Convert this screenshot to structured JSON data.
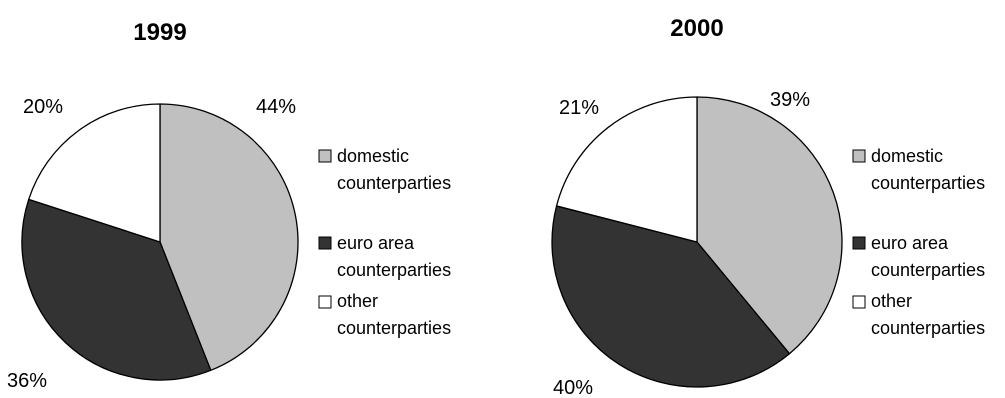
{
  "chart_data": [
    {
      "type": "pie",
      "title": "1999",
      "slices": [
        {
          "label": "domestic counterparties",
          "value": 44,
          "label_text": "44%",
          "color": "#c0c0c0"
        },
        {
          "label": "euro area counterparties",
          "value": 36,
          "label_text": "36%",
          "color": "#333333"
        },
        {
          "label": "other counterparties",
          "value": 20,
          "label_text": "20%",
          "color": "#ffffff"
        }
      ],
      "legend": {
        "placement": "right",
        "entries": [
          {
            "line1": "domestic",
            "line2": "counterparties",
            "color": "#c0c0c0"
          },
          {
            "line1": "euro area",
            "line2": "counterparties",
            "color": "#333333"
          },
          {
            "line1": "other",
            "line2": "counterparties",
            "color": "#ffffff"
          }
        ]
      }
    },
    {
      "type": "pie",
      "title": "2000",
      "slices": [
        {
          "label": "domestic counterparties",
          "value": 39,
          "label_text": "39%",
          "color": "#c0c0c0"
        },
        {
          "label": "euro area counterparties",
          "value": 40,
          "label_text": "40%",
          "color": "#333333"
        },
        {
          "label": "other counterparties",
          "value": 21,
          "label_text": "21%",
          "color": "#ffffff"
        }
      ],
      "legend": {
        "placement": "right",
        "entries": [
          {
            "line1": "domestic",
            "line2": "counterparties",
            "color": "#c0c0c0"
          },
          {
            "line1": "euro area",
            "line2": "counterparties",
            "color": "#333333"
          },
          {
            "line1": "other",
            "line2": "counterparties",
            "color": "#ffffff"
          }
        ]
      }
    }
  ]
}
